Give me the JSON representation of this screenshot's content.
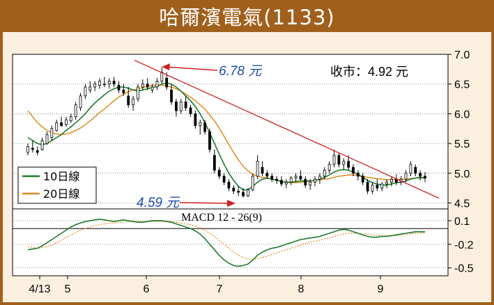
{
  "title": "哈爾濱電氣(1133)",
  "chart_data": {
    "type": "candlestick",
    "price_panel": {
      "y_ticks": [
        "7.0",
        "6.5",
        "6.0",
        "5.5",
        "5.0",
        "4.5"
      ],
      "y_values": [
        7.0,
        6.5,
        6.0,
        5.5,
        5.0,
        4.5
      ],
      "ylim": [
        4.4,
        7.0
      ],
      "close_label": "收市：4.92 元",
      "high_label": "6.78 元",
      "low_label": "4.59 元",
      "legend": [
        {
          "name": "10日線",
          "color": "#1e7a2e"
        },
        {
          "name": "20日線",
          "color": "#e08a20"
        }
      ],
      "trendline_color": "#d02020"
    },
    "macd_panel": {
      "label": "MACD 12 - 26(9)",
      "y_ticks": [
        "0.1",
        "-0.2",
        "-0.5"
      ],
      "y_values": [
        0.1,
        -0.2,
        -0.5
      ],
      "ylim": [
        -0.6,
        0.25
      ]
    },
    "x_labels": [
      "4/13",
      "5",
      "6",
      "7",
      "8",
      "9"
    ],
    "candles": [
      [
        5.35,
        5.5,
        5.3,
        5.45
      ],
      [
        5.42,
        5.55,
        5.35,
        5.4
      ],
      [
        5.38,
        5.45,
        5.3,
        5.35
      ],
      [
        5.4,
        5.6,
        5.38,
        5.55
      ],
      [
        5.5,
        5.7,
        5.48,
        5.65
      ],
      [
        5.6,
        5.8,
        5.55,
        5.75
      ],
      [
        5.72,
        5.9,
        5.7,
        5.85
      ],
      [
        5.85,
        5.95,
        5.78,
        5.8
      ],
      [
        5.82,
        5.95,
        5.78,
        5.9
      ],
      [
        5.88,
        6.0,
        5.85,
        5.95
      ],
      [
        5.95,
        6.2,
        5.9,
        6.15
      ],
      [
        6.1,
        6.35,
        6.05,
        6.3
      ],
      [
        6.3,
        6.5,
        6.25,
        6.45
      ],
      [
        6.4,
        6.55,
        6.35,
        6.45
      ],
      [
        6.45,
        6.55,
        6.38,
        6.5
      ],
      [
        6.48,
        6.6,
        6.42,
        6.55
      ],
      [
        6.5,
        6.62,
        6.45,
        6.5
      ],
      [
        6.5,
        6.6,
        6.42,
        6.55
      ],
      [
        6.55,
        6.62,
        6.45,
        6.5
      ],
      [
        6.48,
        6.55,
        6.35,
        6.4
      ],
      [
        6.4,
        6.5,
        6.3,
        6.35
      ],
      [
        6.3,
        6.45,
        6.1,
        6.15
      ],
      [
        6.15,
        6.3,
        6.05,
        6.25
      ],
      [
        6.25,
        6.5,
        6.2,
        6.45
      ],
      [
        6.45,
        6.58,
        6.4,
        6.5
      ],
      [
        6.5,
        6.6,
        6.4,
        6.45
      ],
      [
        6.4,
        6.5,
        6.35,
        6.45
      ],
      [
        6.45,
        6.6,
        6.4,
        6.55
      ],
      [
        6.55,
        6.78,
        6.5,
        6.7
      ],
      [
        6.6,
        6.7,
        6.4,
        6.45
      ],
      [
        6.4,
        6.5,
        6.15,
        6.2
      ],
      [
        6.2,
        6.25,
        5.95,
        6.05
      ],
      [
        6.05,
        6.25,
        6.0,
        6.2
      ],
      [
        6.2,
        6.3,
        6.05,
        6.1
      ],
      [
        6.1,
        6.15,
        5.95,
        6.0
      ],
      [
        6.0,
        6.05,
        5.75,
        5.8
      ],
      [
        5.8,
        5.9,
        5.65,
        5.85
      ],
      [
        5.85,
        5.9,
        5.65,
        5.7
      ],
      [
        5.7,
        5.75,
        5.35,
        5.4
      ],
      [
        5.3,
        5.4,
        5.0,
        5.05
      ],
      [
        5.05,
        5.1,
        4.9,
        4.95
      ],
      [
        4.95,
        5.0,
        4.8,
        4.85
      ],
      [
        4.85,
        4.9,
        4.7,
        4.75
      ],
      [
        4.75,
        4.8,
        4.65,
        4.7
      ],
      [
        4.7,
        4.78,
        4.62,
        4.68
      ],
      [
        4.68,
        4.75,
        4.59,
        4.62
      ],
      [
        4.62,
        4.75,
        4.6,
        4.72
      ],
      [
        4.72,
        5.0,
        4.7,
        4.95
      ],
      [
        4.95,
        5.3,
        4.9,
        5.2
      ],
      [
        5.1,
        5.2,
        4.95,
        5.0
      ],
      [
        5.0,
        5.05,
        4.9,
        4.95
      ],
      [
        4.95,
        5.0,
        4.85,
        4.9
      ],
      [
        4.9,
        4.95,
        4.82,
        4.88
      ],
      [
        4.88,
        4.95,
        4.78,
        4.82
      ],
      [
        4.82,
        4.9,
        4.75,
        4.85
      ],
      [
        4.85,
        4.95,
        4.8,
        4.92
      ],
      [
        4.92,
        5.0,
        4.85,
        4.95
      ],
      [
        4.95,
        5.05,
        4.88,
        4.9
      ],
      [
        4.9,
        4.95,
        4.75,
        4.8
      ],
      [
        4.8,
        4.9,
        4.72,
        4.85
      ],
      [
        4.85,
        4.95,
        4.78,
        4.9
      ],
      [
        4.9,
        5.0,
        4.82,
        4.95
      ],
      [
        4.95,
        5.1,
        4.9,
        5.05
      ],
      [
        5.05,
        5.2,
        5.0,
        5.15
      ],
      [
        5.15,
        5.4,
        5.1,
        5.3
      ],
      [
        5.3,
        5.35,
        5.1,
        5.15
      ],
      [
        5.15,
        5.25,
        5.05,
        5.2
      ],
      [
        5.2,
        5.3,
        5.05,
        5.1
      ],
      [
        5.1,
        5.15,
        4.95,
        5.0
      ],
      [
        5.0,
        5.05,
        4.88,
        4.95
      ],
      [
        4.95,
        5.0,
        4.8,
        4.85
      ],
      [
        4.85,
        4.9,
        4.65,
        4.7
      ],
      [
        4.7,
        4.85,
        4.65,
        4.8
      ],
      [
        4.8,
        4.9,
        4.7,
        4.75
      ],
      [
        4.75,
        4.85,
        4.7,
        4.82
      ],
      [
        4.82,
        4.9,
        4.75,
        4.85
      ],
      [
        4.85,
        4.95,
        4.78,
        4.9
      ],
      [
        4.9,
        4.98,
        4.8,
        4.85
      ],
      [
        4.85,
        4.95,
        4.8,
        4.9
      ],
      [
        4.9,
        5.05,
        4.85,
        5.0
      ],
      [
        5.0,
        5.2,
        4.95,
        5.15
      ],
      [
        5.1,
        5.15,
        4.95,
        5.0
      ],
      [
        5.0,
        5.05,
        4.88,
        4.95
      ],
      [
        4.95,
        5.02,
        4.85,
        4.92
      ]
    ],
    "ma10": [
      5.6,
      5.55,
      5.5,
      5.48,
      5.5,
      5.55,
      5.6,
      5.65,
      5.72,
      5.78,
      5.85,
      5.92,
      6.0,
      6.1,
      6.18,
      6.25,
      6.32,
      6.38,
      6.42,
      6.45,
      6.45,
      6.43,
      6.4,
      6.38,
      6.4,
      6.42,
      6.44,
      6.46,
      6.5,
      6.52,
      6.5,
      6.45,
      6.38,
      6.3,
      6.22,
      6.12,
      6.0,
      5.85,
      5.68,
      5.5,
      5.32,
      5.15,
      5.0,
      4.88,
      4.78,
      4.72,
      4.72,
      4.78,
      4.85,
      4.9,
      4.92,
      4.9,
      4.88,
      4.86,
      4.85,
      4.85,
      4.86,
      4.87,
      4.87,
      4.87,
      4.88,
      4.9,
      4.93,
      4.97,
      5.02,
      5.05,
      5.06,
      5.05,
      5.02,
      4.98,
      4.93,
      4.88,
      4.84,
      4.82,
      4.8,
      4.8,
      4.82,
      4.84,
      4.85,
      4.87,
      4.9,
      4.92,
      4.93,
      4.92
    ],
    "ma20": [
      6.05,
      5.95,
      5.85,
      5.78,
      5.72,
      5.68,
      5.66,
      5.65,
      5.66,
      5.68,
      5.72,
      5.76,
      5.82,
      5.88,
      5.95,
      6.02,
      6.08,
      6.15,
      6.22,
      6.28,
      6.33,
      6.37,
      6.4,
      6.42,
      6.44,
      6.46,
      6.48,
      6.48,
      6.48,
      6.47,
      6.45,
      6.42,
      6.38,
      6.33,
      6.28,
      6.22,
      6.15,
      6.08,
      5.98,
      5.88,
      5.76,
      5.62,
      5.48,
      5.35,
      5.22,
      5.12,
      5.04,
      4.98,
      4.95,
      4.93,
      4.92,
      4.9,
      4.88,
      4.86,
      4.85,
      4.84,
      4.84,
      4.85,
      4.86,
      4.87,
      4.88,
      4.89,
      4.9,
      4.91,
      4.93,
      4.95,
      4.96,
      4.97,
      4.97,
      4.96,
      4.95,
      4.93,
      4.92,
      4.91,
      4.9,
      4.89,
      4.89,
      4.89,
      4.9,
      4.9,
      4.91,
      4.92,
      4.92,
      4.92
    ],
    "macd": [
      -0.27,
      -0.26,
      -0.25,
      -0.22,
      -0.18,
      -0.14,
      -0.1,
      -0.06,
      -0.02,
      0.02,
      0.05,
      0.07,
      0.09,
      0.1,
      0.11,
      0.12,
      0.11,
      0.1,
      0.09,
      0.1,
      0.11,
      0.1,
      0.09,
      0.08,
      0.08,
      0.09,
      0.1,
      0.1,
      0.1,
      0.09,
      0.08,
      0.06,
      0.04,
      0.02,
      0.0,
      -0.03,
      -0.07,
      -0.13,
      -0.2,
      -0.27,
      -0.34,
      -0.4,
      -0.44,
      -0.47,
      -0.48,
      -0.47,
      -0.45,
      -0.4,
      -0.34,
      -0.3,
      -0.27,
      -0.25,
      -0.24,
      -0.22,
      -0.2,
      -0.18,
      -0.16,
      -0.14,
      -0.13,
      -0.12,
      -0.11,
      -0.1,
      -0.08,
      -0.06,
      -0.04,
      -0.02,
      -0.01,
      -0.02,
      -0.04,
      -0.06,
      -0.08,
      -0.1,
      -0.11,
      -0.11,
      -0.1,
      -0.1,
      -0.09,
      -0.08,
      -0.07,
      -0.06,
      -0.05,
      -0.04,
      -0.04,
      -0.04
    ],
    "signal": [
      -0.23,
      -0.24,
      -0.25,
      -0.24,
      -0.23,
      -0.21,
      -0.18,
      -0.15,
      -0.11,
      -0.08,
      -0.05,
      -0.02,
      0.0,
      0.02,
      0.04,
      0.05,
      0.06,
      0.07,
      0.07,
      0.08,
      0.08,
      0.09,
      0.09,
      0.09,
      0.09,
      0.09,
      0.09,
      0.09,
      0.09,
      0.09,
      0.09,
      0.08,
      0.07,
      0.06,
      0.05,
      0.03,
      0.01,
      -0.02,
      -0.06,
      -0.1,
      -0.15,
      -0.2,
      -0.25,
      -0.3,
      -0.34,
      -0.37,
      -0.39,
      -0.39,
      -0.38,
      -0.37,
      -0.35,
      -0.33,
      -0.31,
      -0.29,
      -0.27,
      -0.25,
      -0.23,
      -0.21,
      -0.19,
      -0.17,
      -0.16,
      -0.15,
      -0.13,
      -0.12,
      -0.1,
      -0.08,
      -0.07,
      -0.06,
      -0.06,
      -0.06,
      -0.07,
      -0.07,
      -0.08,
      -0.09,
      -0.09,
      -0.09,
      -0.09,
      -0.09,
      -0.08,
      -0.08,
      -0.07,
      -0.06,
      -0.06,
      -0.05
    ]
  }
}
